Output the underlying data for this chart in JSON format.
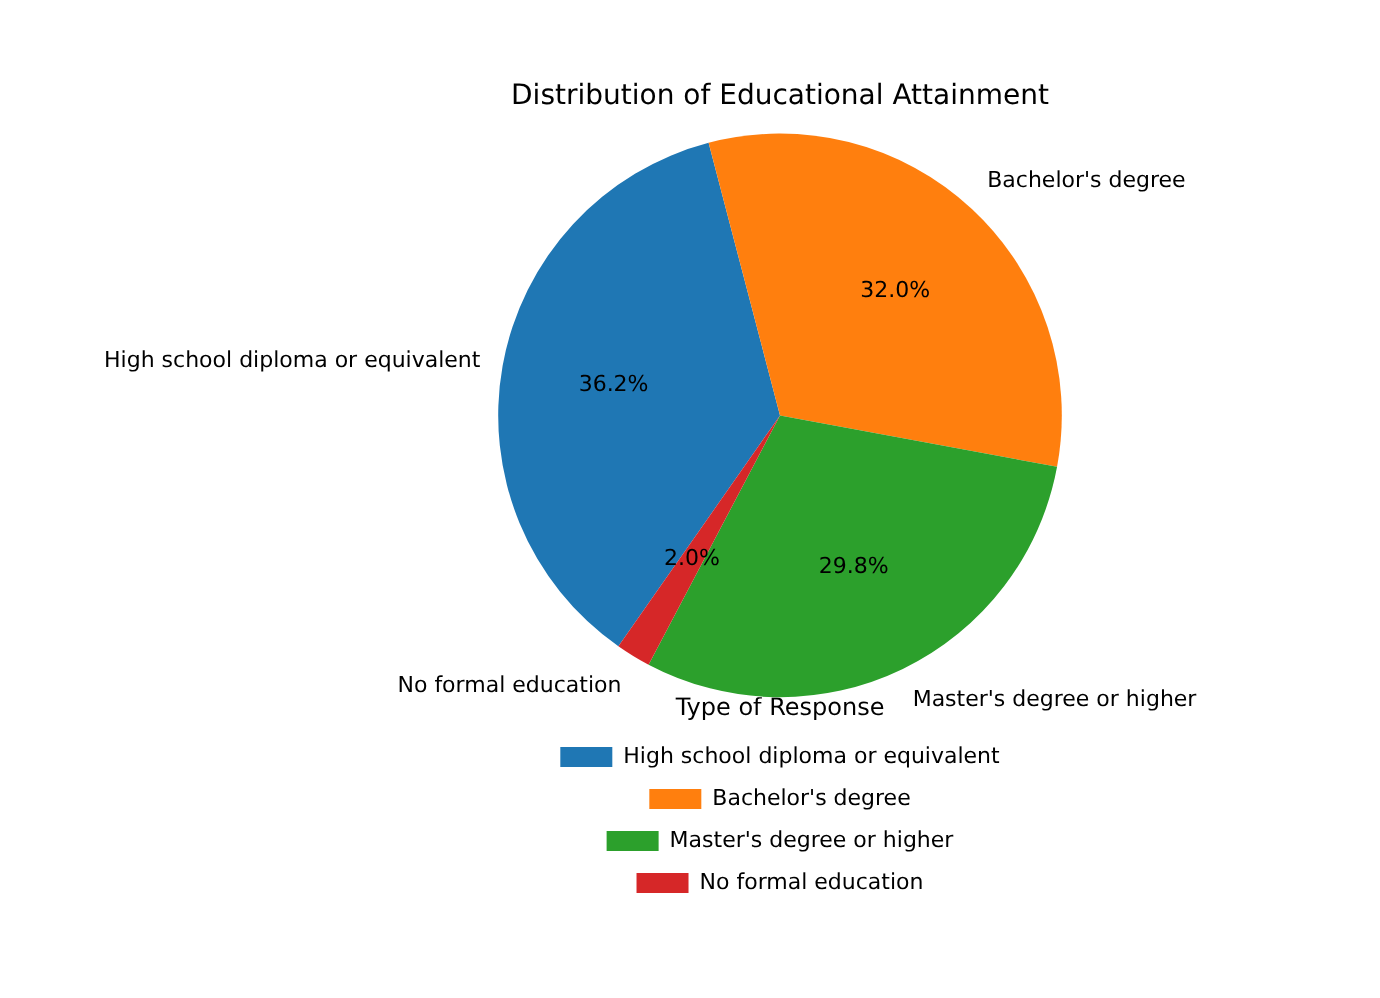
{
  "chart_data": {
    "type": "pie",
    "title": "Distribution of Educational Attainment",
    "categories": [
      "High school diploma or equivalent",
      "Bachelor's degree",
      "Master's degree or higher",
      "No formal education"
    ],
    "values": [
      36.2,
      32.0,
      29.8,
      2.0
    ],
    "colors": [
      "#1f77b4",
      "#ff7f0e",
      "#2ca02c",
      "#d62728"
    ],
    "value_labels": [
      "36.2%",
      "32.0%",
      "29.8%",
      "2.0%"
    ],
    "legend": "bottom",
    "legend_title": "Type of Response"
  }
}
